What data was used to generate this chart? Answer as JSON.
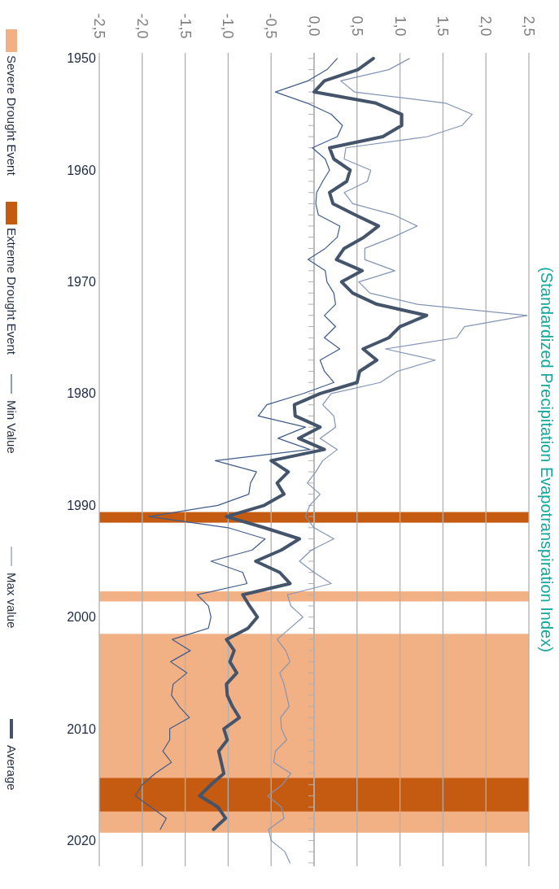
{
  "chart_data": {
    "type": "line",
    "title": "(Standardized Precipitation Evapotranspiration Index)",
    "series": [
      {
        "name": "Min Value",
        "color": "#3e5c8c",
        "x": [
          0.27,
          0.15,
          -0.07,
          -0.45,
          -0.08,
          0.2,
          0.33,
          0.27,
          -0.02,
          0.13,
          0.18,
          0.1,
          0.03,
          0.02,
          0.05,
          0.3,
          0.27,
          0.13,
          -0.07,
          0.13,
          0.15,
          0.23,
          0.25,
          0.12,
          0.25,
          0.12,
          0.3,
          0.07,
          0.12,
          0.23,
          -0.13,
          -0.55,
          -0.65,
          -0.1,
          -0.42,
          -0.05,
          -1.15,
          -0.67,
          -0.74,
          -0.76,
          -1.12,
          -1.92,
          -1.0,
          -0.57,
          -0.72,
          -1.2,
          -0.83,
          -0.78,
          -1.36,
          -1.23,
          -1.2,
          -1.23,
          -1.65,
          -1.44,
          -1.67,
          -1.48,
          -1.64,
          -1.66,
          -1.57,
          -1.45,
          -1.68,
          -1.68,
          -1.76,
          -1.66,
          -1.85,
          -2.0,
          -2.08,
          -1.9,
          -1.72,
          -1.79
        ],
        "values": [
          1950,
          1951,
          1952,
          1953,
          1954,
          1955,
          1956,
          1957,
          1958,
          1959,
          1960,
          1961,
          1962,
          1963,
          1964,
          1965,
          1966,
          1967,
          1968,
          1969,
          1970,
          1971,
          1972,
          1973,
          1974,
          1975,
          1976,
          1977,
          1978,
          1979,
          1980,
          1981,
          1982,
          1983,
          1984,
          1985,
          1986,
          1987,
          1988,
          1989,
          1990,
          1991,
          1992,
          1993,
          1994,
          1995,
          1996,
          1997,
          1998,
          1999,
          2000,
          2001,
          2002,
          2003,
          2004,
          2005,
          2006,
          2007,
          2008,
          2009,
          2010,
          2011,
          2012,
          2013,
          2014,
          2015,
          2016,
          2017,
          2018,
          2019
        ]
      },
      {
        "name": "Max value",
        "color": "#8294b8",
        "x": [
          1.11,
          0.87,
          0.31,
          0.47,
          1.53,
          1.84,
          1.72,
          1.32,
          0.37,
          0.35,
          0.66,
          0.62,
          0.35,
          0.45,
          0.93,
          1.2,
          0.92,
          0.59,
          0.59,
          0.94,
          0.52,
          0.65,
          1.2,
          2.48,
          1.75,
          1.66,
          0.83,
          1.41,
          0.97,
          0.77,
          0.2,
          0.1,
          0.23,
          0.25,
          0.07,
          0.27,
          0.1,
          0.02,
          -0.08,
          0.07,
          -0.05,
          -0.1,
          0.0,
          0.23,
          -0.03,
          -0.17,
          0.0,
          0.2,
          -0.31,
          -0.27,
          -0.13,
          -0.28,
          -0.43,
          -0.33,
          -0.28,
          -0.4,
          -0.35,
          -0.32,
          -0.29,
          -0.39,
          -0.38,
          -0.32,
          -0.45,
          -0.47,
          -0.27,
          -0.37,
          -0.54,
          -0.38,
          -0.35,
          -0.53,
          -0.5,
          -0.34,
          -0.28
        ],
        "values": [
          1950,
          1951,
          1952,
          1953,
          1954,
          1955,
          1956,
          1957,
          1958,
          1959,
          1960,
          1961,
          1962,
          1963,
          1964,
          1965,
          1966,
          1967,
          1968,
          1969,
          1970,
          1971,
          1972,
          1973,
          1974,
          1975,
          1976,
          1977,
          1978,
          1979,
          1980,
          1981,
          1982,
          1983,
          1984,
          1985,
          1986,
          1987,
          1988,
          1989,
          1990,
          1991,
          1992,
          1993,
          1994,
          1995,
          1996,
          1997,
          1998,
          1999,
          2000,
          2001,
          2002,
          2003,
          2004,
          2005,
          2006,
          2007,
          2008,
          2009,
          2010,
          2011,
          2012,
          2013,
          2014,
          2015,
          2016,
          2017,
          2018,
          2019,
          2020,
          2021,
          2022
        ]
      },
      {
        "name": "Average",
        "color": "#44546a",
        "x": [
          0.69,
          0.51,
          0.12,
          0.0,
          0.72,
          1.02,
          1.02,
          0.8,
          0.18,
          0.23,
          0.42,
          0.38,
          0.18,
          0.22,
          0.48,
          0.75,
          0.58,
          0.35,
          0.26,
          0.56,
          0.32,
          0.45,
          0.73,
          1.31,
          1.0,
          0.87,
          0.57,
          0.73,
          0.53,
          0.5,
          0.07,
          -0.23,
          -0.22,
          0.07,
          -0.18,
          0.12,
          -0.5,
          -0.3,
          -0.43,
          -0.35,
          -0.58,
          -1.02,
          -0.58,
          -0.17,
          -0.38,
          -0.68,
          -0.4,
          -0.28,
          -0.83,
          -0.75,
          -0.66,
          -0.77,
          -1.02,
          -0.93,
          -0.98,
          -0.9,
          -1.02,
          -1.01,
          -0.95,
          -0.87,
          -1.05,
          -1.01,
          -1.11,
          -1.08,
          -1.05,
          -1.2,
          -1.33,
          -1.12,
          -1.03,
          -1.17
        ],
        "values": [
          1950,
          1951,
          1952,
          1953,
          1954,
          1955,
          1956,
          1957,
          1958,
          1959,
          1960,
          1961,
          1962,
          1963,
          1964,
          1965,
          1966,
          1967,
          1968,
          1969,
          1970,
          1971,
          1972,
          1973,
          1974,
          1975,
          1976,
          1977,
          1978,
          1979,
          1980,
          1981,
          1982,
          1983,
          1984,
          1985,
          1986,
          1987,
          1988,
          1989,
          1990,
          1991,
          1992,
          1993,
          1994,
          1995,
          1996,
          1997,
          1998,
          1999,
          2000,
          2001,
          2002,
          2003,
          2004,
          2005,
          2006,
          2007,
          2008,
          2009,
          2010,
          2011,
          2012,
          2013,
          2014,
          2015,
          2016,
          2017,
          2018,
          2019
        ]
      }
    ],
    "bands": [
      {
        "axis": "y",
        "from": 2001.5,
        "to": 2019.3,
        "label": "Severe Drought Event",
        "color": "#f2b085"
      },
      {
        "axis": "y",
        "from": 1997.7,
        "to": 1998.6,
        "color": "#f2b085"
      },
      {
        "axis": "y",
        "from": 1990.6,
        "to": 1991.55,
        "label": "Extreme Drought Event",
        "color": "#c55a11"
      },
      {
        "axis": "y",
        "from": 2014.4,
        "to": 2017.4,
        "color": "#c55a11"
      }
    ],
    "xlim": [
      -2.5,
      2.5
    ],
    "xticks": [
      {
        "value": -2.5,
        "label": "-2,5"
      },
      {
        "value": -2,
        "label": "-2,0"
      },
      {
        "value": -1.5,
        "label": "-1,5"
      },
      {
        "value": -1,
        "label": "-1,0"
      },
      {
        "value": -0.5,
        "label": "-0,5"
      },
      {
        "value": 0,
        "label": "0,0"
      },
      {
        "value": 0.5,
        "label": "0,5"
      },
      {
        "value": 1,
        "label": "1,0"
      },
      {
        "value": 1.5,
        "label": "1,5"
      },
      {
        "value": 2,
        "label": "2,0"
      },
      {
        "value": 2.5,
        "label": "2,5"
      }
    ],
    "ylim": [
      2022.3,
      1949.5
    ],
    "yticks": [
      1950,
      {
        "value": 1951,
        "label": null
      },
      {
        "value": 1952,
        "label": null
      },
      {
        "value": 1953,
        "label": null
      },
      {
        "value": 1954,
        "label": null
      },
      {
        "value": 1955,
        "label": null
      },
      {
        "value": 1956,
        "label": null
      },
      {
        "value": 1957,
        "label": null
      },
      {
        "value": 1958,
        "label": null
      },
      {
        "value": 1959,
        "label": null
      },
      1960,
      {
        "value": 1961,
        "label": null
      },
      {
        "value": 1962,
        "label": null
      },
      {
        "value": 1963,
        "label": null
      },
      {
        "value": 1964,
        "label": null
      },
      {
        "value": 1965,
        "label": null
      },
      {
        "value": 1966,
        "label": null
      },
      {
        "value": 1967,
        "label": null
      },
      {
        "value": 1968,
        "label": null
      },
      {
        "value": 1969,
        "label": null
      },
      1970,
      {
        "value": 1971,
        "label": null
      },
      {
        "value": 1972,
        "label": null
      },
      {
        "value": 1973,
        "label": null
      },
      {
        "value": 1974,
        "label": null
      },
      {
        "value": 1975,
        "label": null
      },
      {
        "value": 1976,
        "label": null
      },
      {
        "value": 1977,
        "label": null
      },
      {
        "value": 1978,
        "label": null
      },
      {
        "value": 1979,
        "label": null
      },
      1980,
      {
        "value": 1981,
        "label": null
      },
      {
        "value": 1982,
        "label": null
      },
      {
        "value": 1983,
        "label": null
      },
      {
        "value": 1984,
        "label": null
      },
      {
        "value": 1985,
        "label": null
      },
      {
        "value": 1986,
        "label": null
      },
      {
        "value": 1987,
        "label": null
      },
      {
        "value": 1988,
        "label": null
      },
      {
        "value": 1989,
        "label": null
      },
      1990,
      {
        "value": 1991,
        "label": null
      },
      {
        "value": 1992,
        "label": null
      },
      {
        "value": 1993,
        "label": null
      },
      {
        "value": 1994,
        "label": null
      },
      {
        "value": 1995,
        "label": null
      },
      {
        "value": 1996,
        "label": null
      },
      {
        "value": 1997,
        "label": null
      },
      {
        "value": 1998,
        "label": null
      },
      {
        "value": 1999,
        "label": null
      },
      2000,
      {
        "value": 2001,
        "label": null
      },
      {
        "value": 2002,
        "label": null
      },
      {
        "value": 2003,
        "label": null
      },
      {
        "value": 2004,
        "label": null
      },
      {
        "value": 2005,
        "label": null
      },
      {
        "value": 2006,
        "label": null
      },
      {
        "value": 2007,
        "label": null
      },
      {
        "value": 2008,
        "label": null
      },
      {
        "value": 2009,
        "label": null
      },
      2010,
      {
        "value": 2011,
        "label": null
      },
      {
        "value": 2012,
        "label": null
      },
      {
        "value": 2013,
        "label": null
      },
      {
        "value": 2014,
        "label": null
      },
      {
        "value": 2015,
        "label": null
      },
      {
        "value": 2016,
        "label": null
      },
      {
        "value": 2017,
        "label": null
      },
      {
        "value": 2018,
        "label": null
      },
      {
        "value": 2019,
        "label": null
      },
      2020,
      {
        "value": 2021,
        "label": null
      },
      {
        "value": 2022,
        "label": null
      }
    ],
    "grid": "x",
    "legend": "left"
  }
}
